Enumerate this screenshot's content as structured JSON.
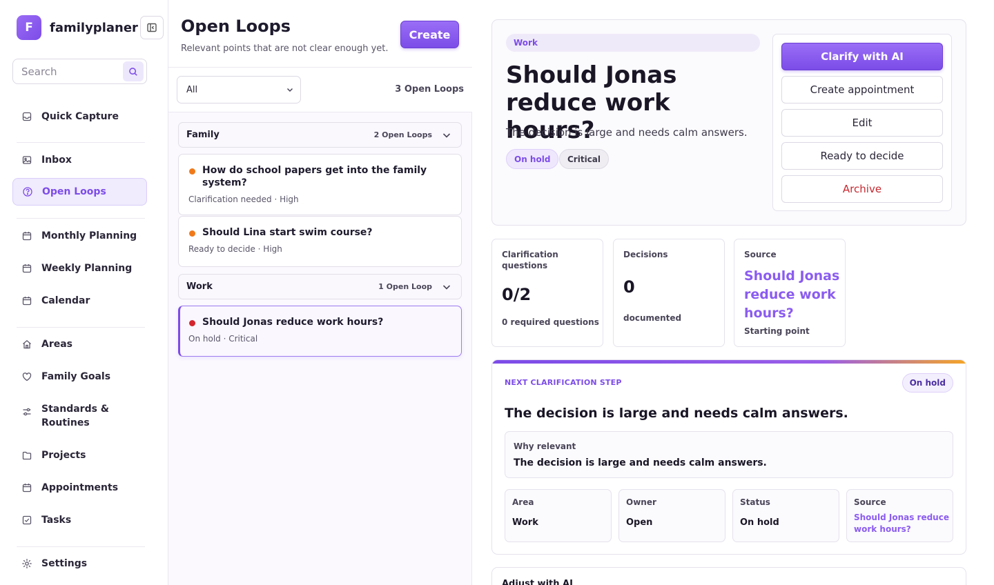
{
  "app": {
    "logo_letter": "F",
    "name": "familyplaner"
  },
  "sidebar": {
    "search_placeholder": "Search",
    "items": [
      {
        "label": "Quick Capture",
        "icon": "tray-icon"
      },
      {
        "label": "Inbox",
        "icon": "image-icon"
      },
      {
        "label": "Open Loops",
        "icon": "question-circle-icon",
        "active": true
      },
      {
        "label": "Monthly Planning",
        "icon": "calendar-icon"
      },
      {
        "label": "Weekly Planning",
        "icon": "calendar-icon"
      },
      {
        "label": "Calendar",
        "icon": "calendar-icon"
      },
      {
        "label": "Areas",
        "icon": "home-icon"
      },
      {
        "label": "Family Goals",
        "icon": "heart-icon"
      },
      {
        "label": "Standards & Routines",
        "icon": "sliders-icon"
      },
      {
        "label": "Projects",
        "icon": "folder-icon"
      },
      {
        "label": "Appointments",
        "icon": "calendar-icon"
      },
      {
        "label": "Tasks",
        "icon": "checkbox-icon"
      },
      {
        "label": "Settings",
        "icon": "gear-icon"
      }
    ]
  },
  "list": {
    "title": "Open Loops",
    "subtitle": "Relevant points that are not clear enough yet.",
    "create_label": "Create",
    "filter_value": "All",
    "total_count": "3 Open Loops",
    "groups": [
      {
        "name": "Family",
        "count": "2 Open Loops",
        "items": [
          {
            "title": "How do school papers get into the family system?",
            "meta": "Clarification needed · High",
            "dot_color": "#f07a1a"
          },
          {
            "title": "Should Lina start swim course?",
            "meta": "Ready to decide · High",
            "dot_color": "#f07a1a"
          }
        ]
      },
      {
        "name": "Work",
        "count": "1 Open Loop",
        "items": [
          {
            "title": "Should Jonas reduce work hours?",
            "meta": "On hold · Critical",
            "dot_color": "#d4262e",
            "selected": true
          }
        ]
      }
    ]
  },
  "detail": {
    "area": "Work",
    "title": "Should Jonas reduce work hours?",
    "description": "The decision is large and needs calm answers.",
    "tags": [
      "On hold",
      "Critical"
    ],
    "actions": {
      "clarify": "Clarify with AI",
      "appointment": "Create appointment",
      "edit": "Edit",
      "ready": "Ready to decide",
      "archive": "Archive"
    },
    "stats": {
      "questions": {
        "label": "Clarification questions",
        "value": "0/2",
        "sub": "0 required questions"
      },
      "decisions": {
        "label": "Decisions",
        "value": "0",
        "sub": "documented"
      },
      "source": {
        "label": "Source",
        "value": "Should Jonas reduce work hours?",
        "sub": "Starting point"
      }
    },
    "next_step": {
      "kicker": "NEXT CLARIFICATION STEP",
      "badge": "On hold",
      "title": "The decision is large and needs calm answers.",
      "why_label": "Why relevant",
      "why_text": "The decision is large and needs calm answers.",
      "meta": [
        {
          "label": "Area",
          "value": "Work"
        },
        {
          "label": "Owner",
          "value": "Open"
        },
        {
          "label": "Status",
          "value": "On hold"
        },
        {
          "label": "Source",
          "value": "Should Jonas reduce work hours?"
        }
      ]
    },
    "adjust_title": "Adjust with AI"
  },
  "colors": {
    "accent": "#7c4ce8",
    "danger": "#c5282f",
    "high": "#f07a1a",
    "critical": "#d4262e"
  }
}
